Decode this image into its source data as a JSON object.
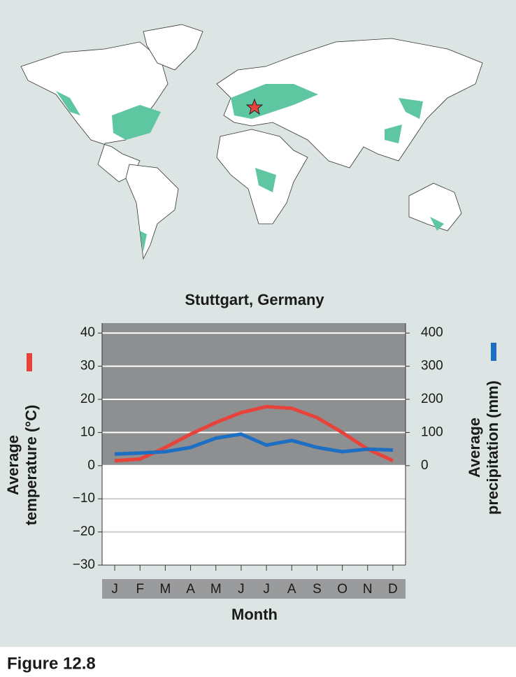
{
  "caption": "Figure 12.8",
  "chart_data": {
    "type": "line",
    "title": "Stuttgart, Germany",
    "x_label": "Month",
    "y_label": [
      "Average",
      "temperature (°C)"
    ],
    "y2_label": [
      "Average",
      "precipitation (mm)"
    ],
    "categories": [
      "J",
      "F",
      "M",
      "A",
      "M",
      "J",
      "J",
      "A",
      "S",
      "O",
      "N",
      "D"
    ],
    "series": [
      {
        "name": "Average temperature",
        "color": "#e8433a",
        "values": [
          1.5,
          2,
          5.5,
          9.5,
          13,
          16,
          17.8,
          17.3,
          14.5,
          10,
          5,
          1.5
        ]
      },
      {
        "name": "Average precipitation",
        "color": "#1c6fc2",
        "axis": "y2",
        "values": [
          35,
          38,
          42,
          55,
          83,
          95,
          62,
          76,
          55,
          42,
          50,
          47
        ]
      }
    ],
    "ylim": [
      -30,
      43
    ],
    "yticks": [
      {
        "value": -30,
        "label": "−30"
      },
      {
        "value": -20,
        "label": "−20"
      },
      {
        "value": -10,
        "label": "−10"
      },
      0,
      10,
      20,
      30,
      40
    ],
    "y2lim": [
      -300,
      430
    ],
    "y2ticks": [
      0,
      100,
      200,
      300,
      400
    ],
    "grid": true
  }
}
